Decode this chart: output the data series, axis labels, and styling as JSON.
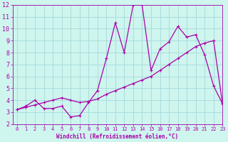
{
  "x": [
    0,
    1,
    2,
    3,
    4,
    5,
    6,
    7,
    8,
    9,
    10,
    11,
    12,
    13,
    14,
    15,
    16,
    17,
    18,
    19,
    20,
    21,
    22,
    23
  ],
  "line1_y": [
    3.2,
    3.5,
    4.0,
    3.3,
    3.3,
    3.5,
    2.6,
    2.7,
    3.8,
    4.8,
    7.5,
    10.5,
    8.0,
    12.0,
    12.0,
    6.5,
    8.3,
    8.9,
    10.2,
    9.3,
    9.5,
    7.8,
    5.2,
    3.7
  ],
  "line2_y": [
    3.2,
    3.4,
    3.6,
    3.8,
    4.0,
    4.2,
    4.0,
    3.8,
    3.9,
    4.1,
    4.5,
    4.8,
    5.1,
    5.4,
    5.7,
    6.0,
    6.5,
    7.0,
    7.5,
    8.0,
    8.5,
    8.8,
    9.0,
    3.7
  ],
  "background_color": "#cef5ee",
  "grid_color": "#aadddd",
  "line_color": "#aa00aa",
  "xlabel": "Windchill (Refroidissement éolien,°C)",
  "ylim": [
    2,
    12
  ],
  "xlim": [
    -0.5,
    23
  ],
  "yticks": [
    2,
    3,
    4,
    5,
    6,
    7,
    8,
    9,
    10,
    11,
    12
  ],
  "xticks": [
    0,
    1,
    2,
    3,
    4,
    5,
    6,
    7,
    8,
    9,
    10,
    11,
    12,
    13,
    14,
    15,
    16,
    17,
    18,
    19,
    20,
    21,
    22,
    23
  ]
}
